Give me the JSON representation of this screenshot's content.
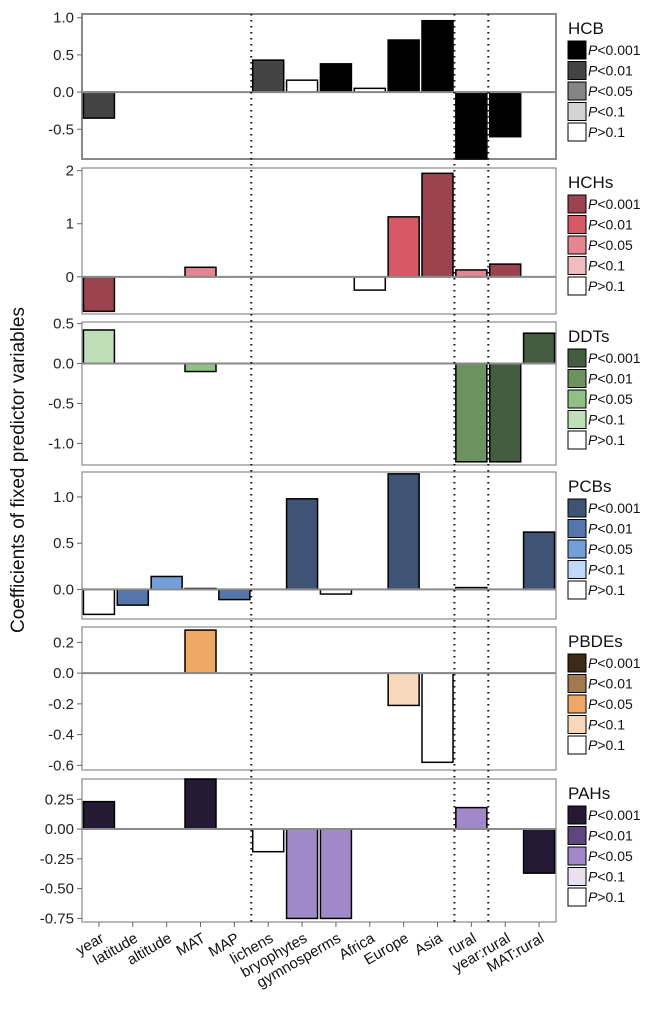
{
  "chart_data": {
    "type": "bar",
    "ylabel": "Coefficients of fixed predictor variables",
    "categories": [
      "year",
      "latitude",
      "altitude",
      "MAT",
      "MAP",
      "lichens",
      "bryophytes",
      "gymnosperms",
      "Africa",
      "Europe",
      "Asia",
      "rural",
      "year:rural",
      "MAT:rural"
    ],
    "separators_after": [
      "MAP",
      "Asia",
      "rural"
    ],
    "legend_levels": [
      "P<0.001",
      "P<0.01",
      "P<0.05",
      "P<0.1",
      "P>0.1"
    ],
    "panels": [
      {
        "name": "HCB",
        "ylim": [
          -0.9,
          1.05
        ],
        "yticks": [
          1.0,
          0.5,
          0.0,
          -0.5
        ],
        "ytick_labels": [
          "1.0",
          "0.5",
          "0.0",
          "-0.5"
        ],
        "colors": [
          "#000000",
          "#434343",
          "#858585",
          "#d4d4d4",
          "#ffffff"
        ],
        "values": [
          -0.35,
          null,
          null,
          null,
          null,
          0.43,
          0.16,
          0.38,
          0.05,
          0.7,
          0.96,
          -0.9,
          -0.6,
          null
        ],
        "significance": [
          1,
          null,
          null,
          null,
          null,
          1,
          4,
          0,
          4,
          0,
          0,
          0,
          0,
          null
        ]
      },
      {
        "name": "HCHs",
        "ylim": [
          -0.7,
          2.05
        ],
        "yticks": [
          2,
          1,
          0
        ],
        "ytick_labels": [
          "2",
          "1",
          "0"
        ],
        "colors": [
          "#9c4350",
          "#d55a66",
          "#e4868f",
          "#f0bcc0",
          "#ffffff"
        ],
        "values": [
          -0.65,
          null,
          null,
          0.18,
          null,
          null,
          null,
          null,
          -0.25,
          1.13,
          1.95,
          0.13,
          0.24,
          null
        ],
        "significance": [
          0,
          null,
          null,
          2,
          null,
          null,
          null,
          null,
          4,
          1,
          0,
          2,
          0,
          null
        ]
      },
      {
        "name": "DDTs",
        "ylim": [
          -1.27,
          0.52
        ],
        "yticks": [
          0.5,
          0.0,
          -0.5,
          -1.0
        ],
        "ytick_labels": [
          "0.5",
          "0.0",
          "-0.5",
          "-1.0"
        ],
        "colors": [
          "#445d40",
          "#6b925f",
          "#8fc185",
          "#bfdfb8",
          "#ffffff"
        ],
        "values": [
          0.42,
          null,
          null,
          -0.1,
          null,
          null,
          null,
          null,
          null,
          null,
          null,
          -1.23,
          -1.23,
          0.38
        ],
        "significance": [
          3,
          null,
          null,
          2,
          null,
          null,
          null,
          null,
          null,
          null,
          null,
          1,
          0,
          0
        ]
      },
      {
        "name": "PCBs",
        "ylim": [
          -0.32,
          1.27
        ],
        "yticks": [
          1.0,
          0.5,
          0.0
        ],
        "ytick_labels": [
          "1.0",
          "0.5",
          "0.0"
        ],
        "colors": [
          "#3f5474",
          "#5576ab",
          "#729fd9",
          "#c1d9f6",
          "#ffffff"
        ],
        "values": [
          -0.27,
          -0.17,
          0.14,
          0.01,
          -0.11,
          null,
          0.98,
          -0.05,
          null,
          1.25,
          null,
          0.02,
          null,
          0.62
        ],
        "significance": [
          4,
          1,
          2,
          4,
          1,
          null,
          0,
          4,
          null,
          0,
          null,
          4,
          null,
          0
        ]
      },
      {
        "name": "PBDEs",
        "ylim": [
          -0.63,
          0.3
        ],
        "yticks": [
          0.2,
          0.0,
          -0.2,
          -0.4,
          -0.6
        ],
        "ytick_labels": [
          "0.2",
          "0.0",
          "-0.2",
          "-0.4",
          "-0.6"
        ],
        "colors": [
          "#3a2a16",
          "#a17a52",
          "#efa865",
          "#f8d8bb",
          "#ffffff"
        ],
        "values": [
          null,
          null,
          null,
          0.28,
          null,
          null,
          null,
          null,
          null,
          -0.21,
          -0.58,
          null,
          null,
          null
        ],
        "significance": [
          null,
          null,
          null,
          2,
          null,
          null,
          null,
          null,
          null,
          3,
          4,
          null,
          null,
          null
        ]
      },
      {
        "name": "PAHs",
        "ylim": [
          -0.78,
          0.42
        ],
        "yticks": [
          0.25,
          0.0,
          -0.25,
          -0.5,
          -0.75
        ],
        "ytick_labels": [
          "0.25",
          "0.00",
          "-0.25",
          "-0.50",
          "-0.75"
        ],
        "colors": [
          "#251a35",
          "#5e4680",
          "#a188c8",
          "#e8e1f0",
          "#ffffff"
        ],
        "values": [
          0.23,
          null,
          null,
          0.42,
          null,
          -0.19,
          -0.75,
          -0.75,
          null,
          null,
          null,
          0.18,
          null,
          -0.37
        ],
        "significance": [
          0,
          null,
          null,
          0,
          null,
          4,
          2,
          2,
          null,
          null,
          null,
          2,
          null,
          0
        ]
      }
    ]
  }
}
